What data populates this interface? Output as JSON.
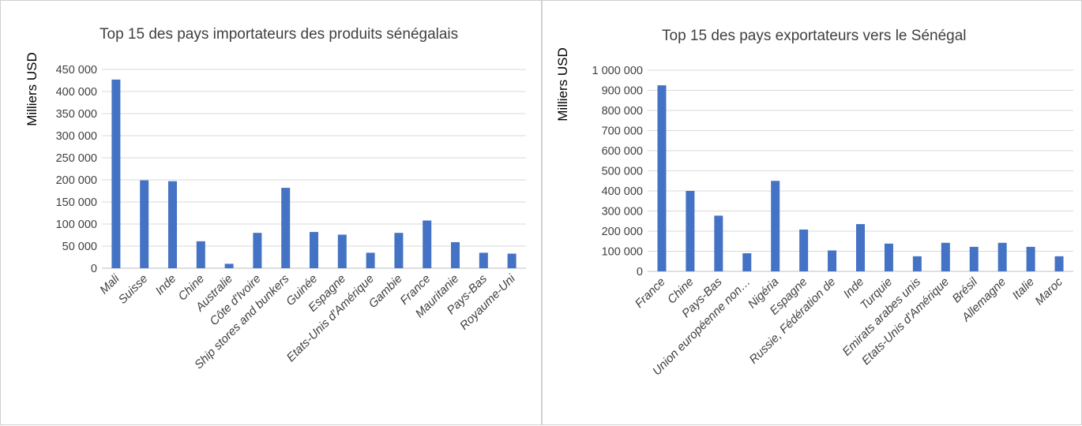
{
  "chart_data": [
    {
      "type": "bar",
      "title": "Top 15 des pays importateurs des produits sénégalais",
      "ylabel": "Milliers USD",
      "xlabel": "",
      "ylim": [
        0,
        450000
      ],
      "yticks": [
        0,
        50000,
        100000,
        150000,
        200000,
        250000,
        300000,
        350000,
        400000,
        450000
      ],
      "ytick_labels": [
        "0",
        "50 000",
        "100 000",
        "150 000",
        "200 000",
        "250 000",
        "300 000",
        "350 000",
        "400 000",
        "450 000"
      ],
      "grid": true,
      "categories": [
        "Mali",
        "Suisse",
        "Inde",
        "Chine",
        "Australie",
        "Côte d'Ivoire",
        "Ship stores and bunkers",
        "Guinée",
        "Espagne",
        "Etats-Unis d'Amérique",
        "Gambie",
        "France",
        "Mauritanie",
        "Pays-Bas",
        "Royaume-Uni"
      ],
      "values": [
        427000,
        199000,
        197000,
        61000,
        10000,
        80000,
        182000,
        82000,
        76000,
        35000,
        80000,
        108000,
        59000,
        35000,
        33000
      ],
      "color": "#4472C4"
    },
    {
      "type": "bar",
      "title": "Top 15 des pays exportateurs vers le Sénégal",
      "ylabel": "Milliers USD",
      "xlabel": "",
      "ylim": [
        0,
        1000000
      ],
      "yticks": [
        0,
        100000,
        200000,
        300000,
        400000,
        500000,
        600000,
        700000,
        800000,
        900000,
        1000000
      ],
      "ytick_labels": [
        "0",
        "100 000",
        "200 000",
        "300 000",
        "400 000",
        "500 000",
        "600 000",
        "700 000",
        "800 000",
        "900 000",
        "1 000 000"
      ],
      "grid": true,
      "categories": [
        "France",
        "Chine",
        "Pays-Bas",
        "Union européenne non…",
        "Nigéria",
        "Espagne",
        "Russie, Fédération de",
        "Inde",
        "Turquie",
        "Emirats arabes unis",
        "Etats-Unis d'Amérique",
        "Brésil",
        "Allemagne",
        "Italie",
        "Maroc"
      ],
      "values": [
        925000,
        400000,
        277000,
        90000,
        450000,
        208000,
        104000,
        235000,
        138000,
        75000,
        142000,
        122000,
        142000,
        122000,
        75000
      ],
      "color": "#4472C4"
    }
  ]
}
